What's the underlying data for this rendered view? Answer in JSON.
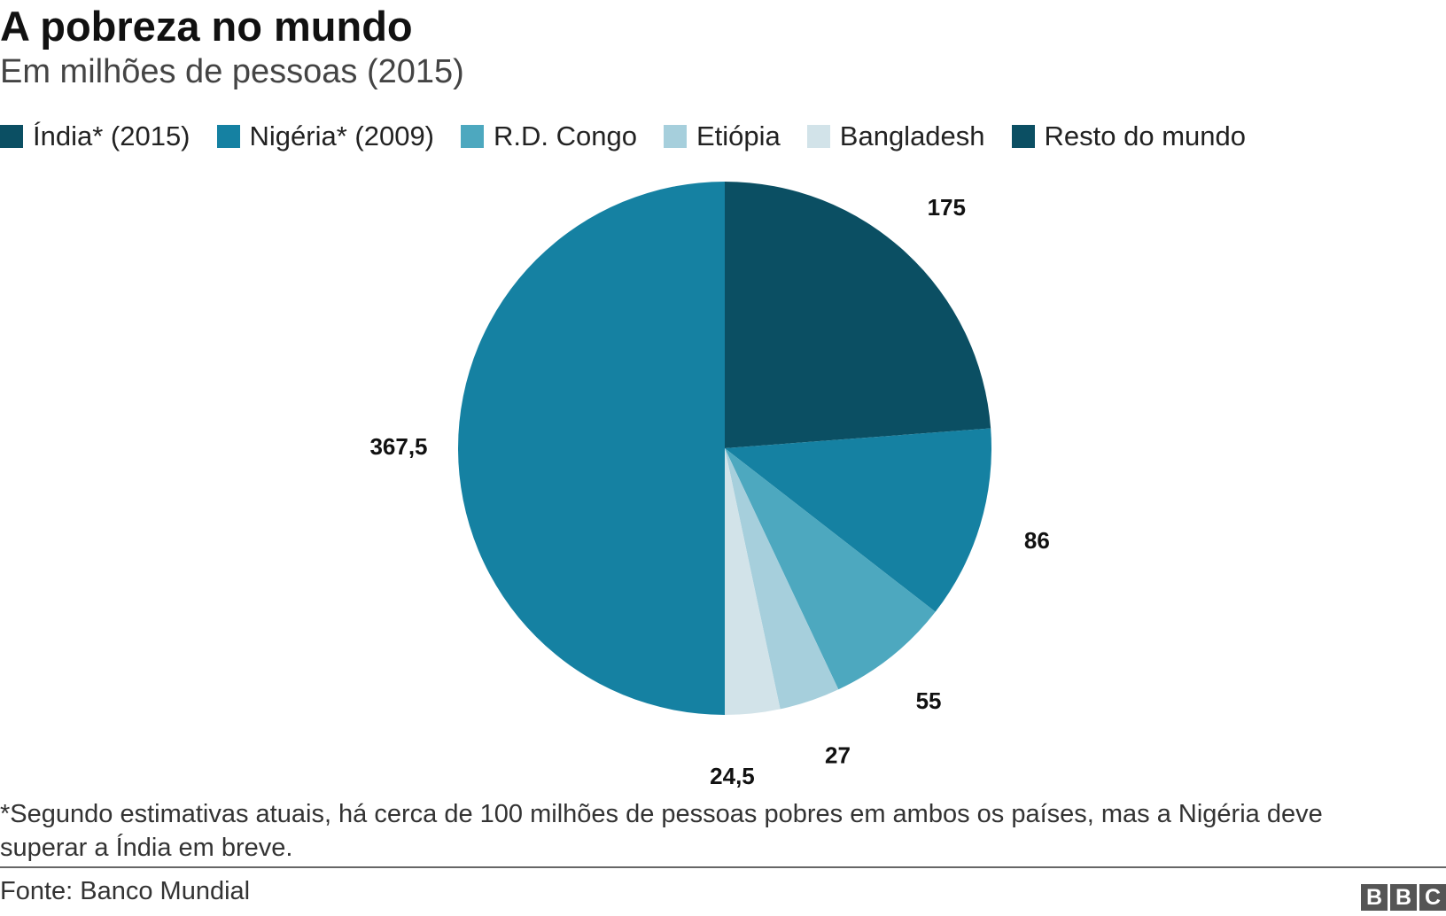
{
  "title": "A pobreza no mundo",
  "subtitle": "Em milhões de pessoas (2015)",
  "footnote": "*Segundo estimativas atuais, há cerca de 100 milhões de pessoas pobres em ambos os países, mas a Nigéria deve superar a Índia em breve.",
  "source": "Fonte: Banco Mundial",
  "logo": [
    "B",
    "B",
    "C"
  ],
  "chart_data": {
    "type": "pie",
    "title": "A pobreza no mundo",
    "subtitle": "Em milhões de pessoas (2015)",
    "legend_position": "top",
    "categories": [
      "Índia* (2015)",
      "Nigéria* (2009)",
      "R.D. Congo",
      "Etiópia",
      "Bangladesh",
      "Resto do mundo"
    ],
    "values": [
      175,
      86,
      55,
      27,
      24.5,
      367.5
    ],
    "value_labels": [
      "175",
      "86",
      "55",
      "27",
      "24,5",
      "367,5"
    ],
    "colors": [
      "#0b4f63",
      "#1581a2",
      "#4da8bf",
      "#a6cfdc",
      "#d2e3e9",
      "#1581a2"
    ],
    "legend_colors": [
      "#0b4f63",
      "#1581a2",
      "#4da8bf",
      "#a6cfdc",
      "#d2e3e9",
      "#0b4f63"
    ]
  }
}
